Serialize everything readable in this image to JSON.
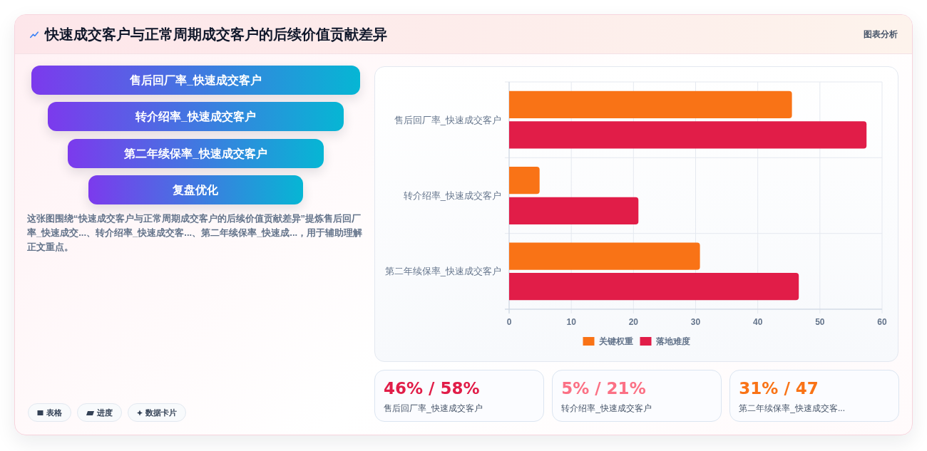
{
  "chart_data": [
    {
      "type": "other",
      "title": "快速成交客户与正常周期成交客户的后续价值贡献差异",
      "categories": [
        "售后回厂率_快速成交客户",
        "转介绍率_快速成交客户",
        "第二年续保率_快速成交客户",
        "复盘优化"
      ],
      "annotations": [
        "图表分析",
        "这张图围绕“快速成交客户与正常周期成交客户的后续价值贡献差异”提炼售后回厂率_快速成交...、转介绍率_快速成交客...、第二年续保率_快速成...，用于辅助理解正文重点。",
        "表格",
        "进度",
        "数据卡片"
      ]
    },
    {
      "type": "bar",
      "orientation": "horizontal",
      "categories": [
        "售后回厂率_快速成交客户",
        "转介绍率_快速成交客户",
        "第二年续保率_快速成交客户"
      ],
      "series": [
        {
          "name": "关键权重",
          "color": "#f97316",
          "values": [
            45.5,
            4.9,
            30.7
          ]
        },
        {
          "name": "落地难度",
          "color": "#e11d48",
          "values": [
            57.5,
            20.8,
            46.6
          ]
        }
      ],
      "xlim": [
        0,
        60
      ],
      "xticks": [
        0,
        10,
        20,
        30,
        40,
        50,
        60
      ],
      "grid": true,
      "legend": "bottom"
    },
    {
      "type": "other",
      "categories": [
        "售后回厂率_快速成交客户",
        "转介绍率_快速成交客户",
        "第二年续保率_快速成交客..."
      ],
      "annotations": [
        "46% / 58%",
        "5% / 21%",
        "31% / 47"
      ]
    }
  ]
}
